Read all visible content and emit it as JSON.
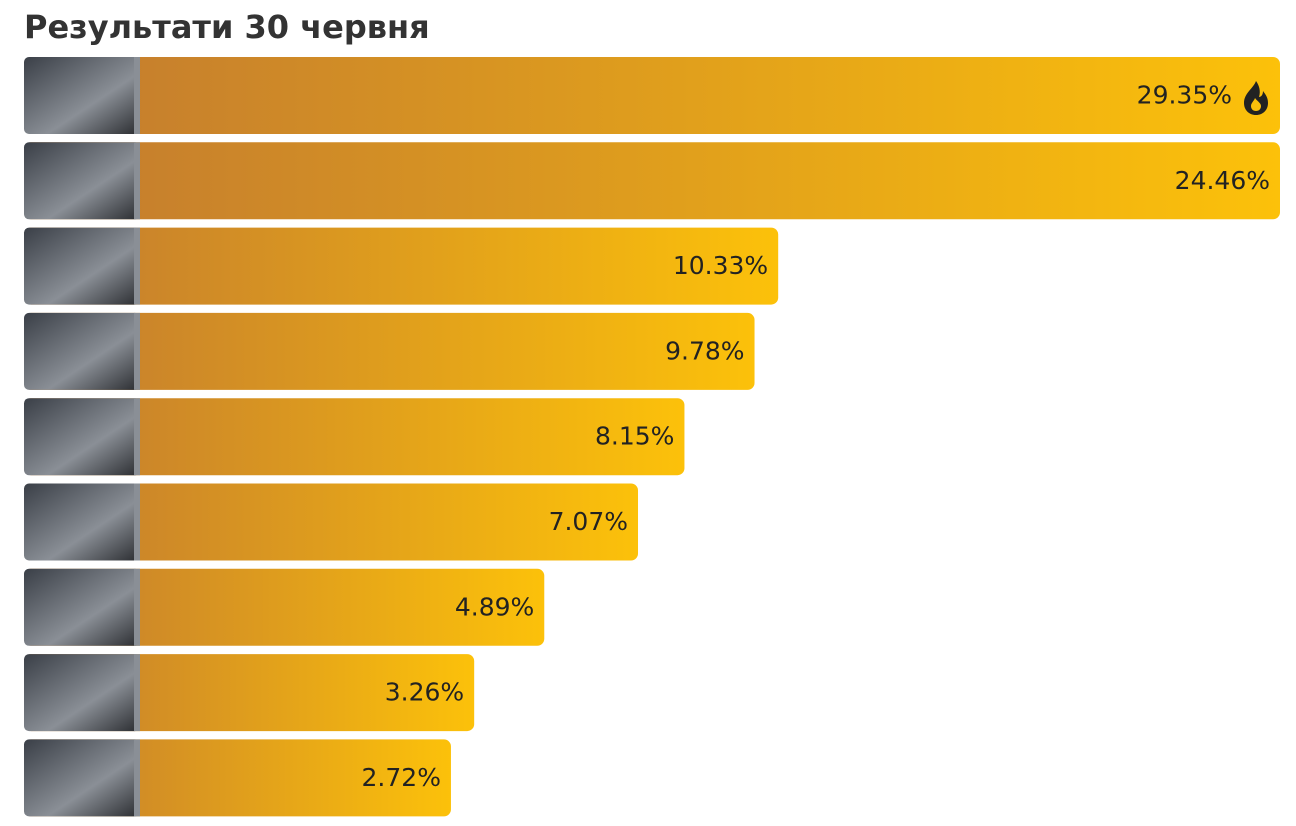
{
  "chart_data": {
    "type": "bar",
    "orientation": "horizontal",
    "title": "Результати 30 червня",
    "values": [
      29.35,
      24.46,
      10.33,
      9.78,
      8.15,
      7.07,
      4.89,
      3.26,
      2.72
    ],
    "value_labels": [
      "29.35%",
      "24.46%",
      "10.33%",
      "9.78%",
      "8.15%",
      "7.07%",
      "4.89%",
      "3.26%",
      "2.72%"
    ],
    "color": "#fcc10a"
  }
}
